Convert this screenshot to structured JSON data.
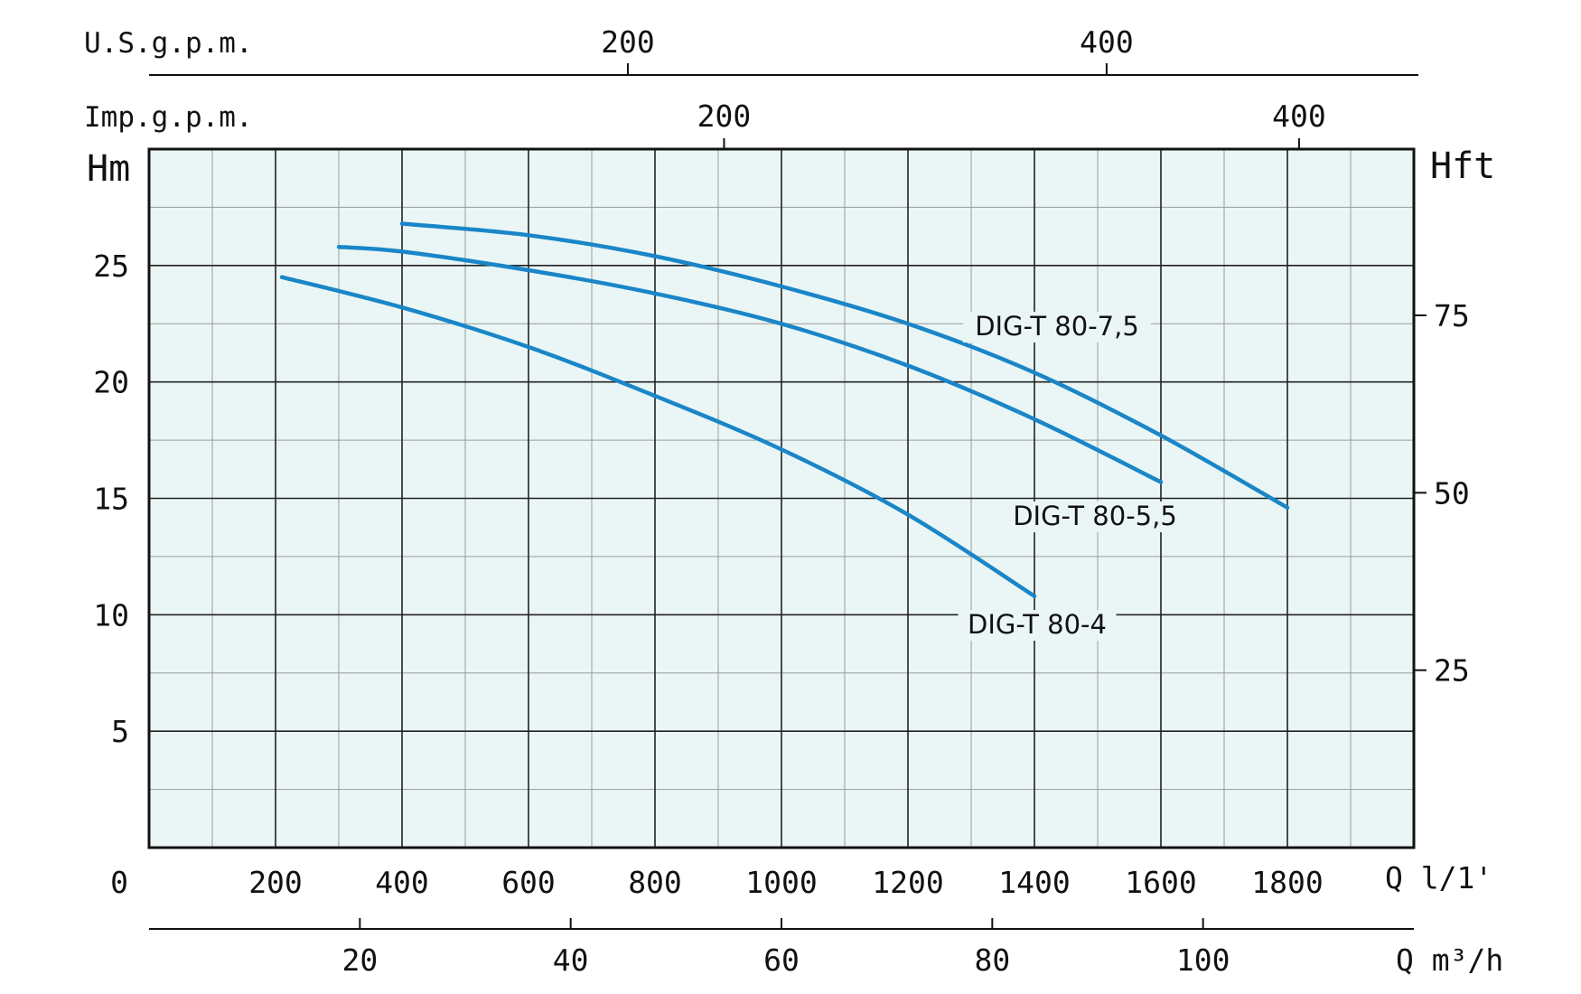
{
  "chart_data": {
    "type": "line",
    "title": "",
    "xlabel": "Q l/1'",
    "ylabel": "Hm",
    "xlim": [
      0,
      2000
    ],
    "ylim": [
      0,
      30
    ],
    "x_ticks": [
      200,
      400,
      600,
      800,
      1000,
      1200,
      1400,
      1600,
      1800
    ],
    "y_ticks": [
      5,
      10,
      15,
      20,
      25
    ],
    "origin_label": "0",
    "grid": true,
    "axis_labels": {
      "left": "Hm",
      "right": "Hft",
      "bottom": "Q l/1'",
      "m3h_unit": "Q m³/h",
      "us_gpm_unit": "U.S.g.p.m.",
      "imp_gpm_unit": "Imp.g.p.m."
    },
    "right_ticks": [
      25,
      50,
      75
    ],
    "m3h_ticks": [
      20,
      40,
      60,
      80,
      100
    ],
    "us_gpm_ticks": [
      200,
      400
    ],
    "imp_gpm_ticks": [
      200,
      400
    ],
    "series": [
      {
        "name": "DIG-T 80-4",
        "color": "#1a86c8",
        "points": [
          [
            210,
            24.5
          ],
          [
            400,
            23.2
          ],
          [
            600,
            21.5
          ],
          [
            800,
            19.4
          ],
          [
            1000,
            17.1
          ],
          [
            1200,
            14.3
          ],
          [
            1400,
            10.8
          ]
        ]
      },
      {
        "name": "DIG-T 80-5,5",
        "color": "#1a86c8",
        "points": [
          [
            300,
            25.8
          ],
          [
            400,
            25.6
          ],
          [
            600,
            24.8
          ],
          [
            800,
            23.8
          ],
          [
            1000,
            22.5
          ],
          [
            1200,
            20.7
          ],
          [
            1400,
            18.4
          ],
          [
            1600,
            15.7
          ]
        ]
      },
      {
        "name": "DIG-T 80-7,5",
        "color": "#1a86c8",
        "points": [
          [
            400,
            26.8
          ],
          [
            600,
            26.3
          ],
          [
            800,
            25.4
          ],
          [
            1000,
            24.1
          ],
          [
            1200,
            22.5
          ],
          [
            1400,
            20.4
          ],
          [
            1600,
            17.7
          ],
          [
            1800,
            14.6
          ]
        ]
      }
    ]
  }
}
